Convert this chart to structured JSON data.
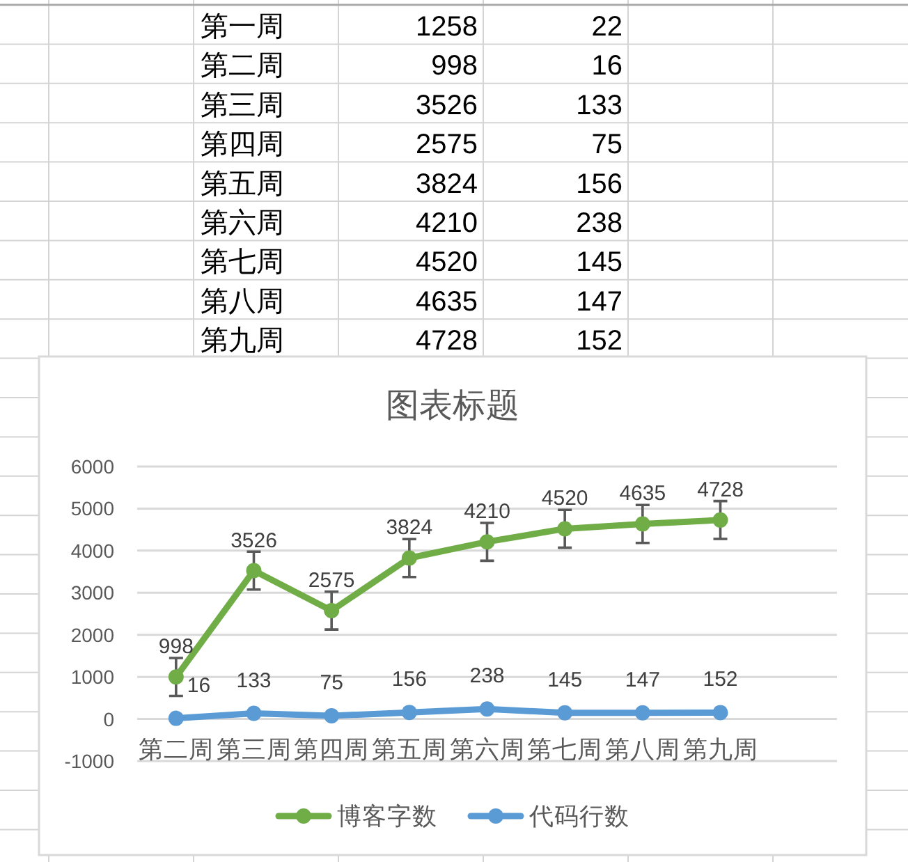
{
  "chart_data": [
    {
      "type": "other",
      "categories": [
        "第一周",
        "第二周",
        "第三周",
        "第四周",
        "第五周",
        "第六周",
        "第七周",
        "第八周",
        "第九周"
      ],
      "series": [
        {
          "values": [
            1258,
            998,
            3526,
            2575,
            3824,
            4210,
            4520,
            4635,
            4728
          ]
        },
        {
          "values": [
            22,
            16,
            133,
            75,
            156,
            238,
            145,
            147,
            152
          ]
        }
      ],
      "data_labels": true
    },
    {
      "type": "line",
      "title": "图表标题",
      "categories": [
        "第二周",
        "第三周",
        "第四周",
        "第五周",
        "第六周",
        "第七周",
        "第八周",
        "第九周",
        null
      ],
      "series": [
        {
          "name": "博客字数",
          "color": "#70ad47",
          "values": [
            998,
            3526,
            2575,
            3824,
            4210,
            4520,
            4635,
            4728,
            null
          ],
          "errors": [
            450,
            450,
            450,
            450,
            450,
            450,
            450,
            450,
            null
          ]
        },
        {
          "name": "代码行数",
          "color": "#5b9bd5",
          "values": [
            16,
            133,
            75,
            156,
            238,
            145,
            147,
            152,
            null
          ]
        }
      ],
      "ylim": [
        -1000,
        6000
      ],
      "yticks": [
        -1000,
        0,
        1000,
        2000,
        3000,
        4000,
        5000,
        6000
      ],
      "grid": "y",
      "legend": "bottom",
      "marker": "circle",
      "data_labels": true
    }
  ]
}
